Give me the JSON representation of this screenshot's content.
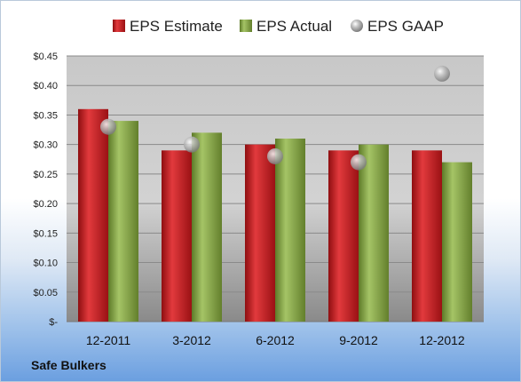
{
  "company": "Safe Bulkers",
  "chart_data": {
    "type": "bar",
    "categories": [
      "12-2011",
      "3-2012",
      "6-2012",
      "9-2012",
      "12-2012"
    ],
    "series": [
      {
        "name": "EPS Estimate",
        "kind": "bar",
        "color": "#c0161b",
        "values": [
          0.36,
          0.29,
          0.3,
          0.29,
          0.29
        ]
      },
      {
        "name": "EPS Actual",
        "kind": "bar",
        "color": "#7a9a3a",
        "values": [
          0.34,
          0.32,
          0.31,
          0.3,
          0.27
        ]
      },
      {
        "name": "EPS GAAP",
        "kind": "marker",
        "color": "#a9a9a9",
        "values": [
          0.33,
          0.3,
          0.28,
          0.27,
          0.42
        ]
      }
    ],
    "yticks": [
      "$-",
      "$0.05",
      "$0.10",
      "$0.15",
      "$0.20",
      "$0.25",
      "$0.30",
      "$0.35",
      "$0.40",
      "$0.45"
    ],
    "ylim": [
      0,
      0.45
    ],
    "grid": true,
    "legend_position": "top"
  }
}
